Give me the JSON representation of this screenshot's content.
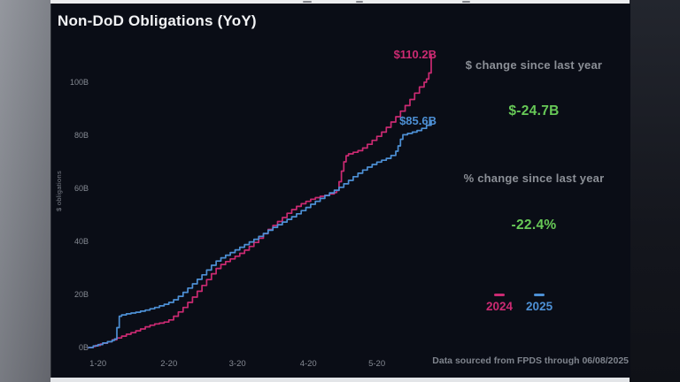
{
  "page": {
    "title": "Non-DoD Obligations (YoY)"
  },
  "chart_data": {
    "type": "line",
    "title": "Non-DoD Obligations (YoY)",
    "xlabel": "",
    "ylabel": "$ obligations",
    "grid": false,
    "legend_position": "bottom-right",
    "ylim": [
      0,
      116
    ],
    "x_range_days": [
      0,
      145
    ],
    "y_ticks": [
      {
        "label": "0B",
        "value": 0
      },
      {
        "label": "20B",
        "value": 20
      },
      {
        "label": "40B",
        "value": 40
      },
      {
        "label": "60B",
        "value": 60
      },
      {
        "label": "80B",
        "value": 80
      },
      {
        "label": "100B",
        "value": 100
      }
    ],
    "x_ticks": [
      {
        "label": "1-20",
        "day": 4
      },
      {
        "label": "2-20",
        "day": 34
      },
      {
        "label": "3-20",
        "day": 63
      },
      {
        "label": "4-20",
        "day": 93
      },
      {
        "label": "5-20",
        "day": 122
      }
    ],
    "series": [
      {
        "name": "2024",
        "color": "#cb2a72",
        "end_label": "$110.2B",
        "final_value_billion": 110.2,
        "points": [
          [
            0,
            0
          ],
          [
            2,
            0.4
          ],
          [
            3,
            0.8
          ],
          [
            5,
            1.3
          ],
          [
            6,
            1.6
          ],
          [
            8,
            2.2
          ],
          [
            10,
            2.9
          ],
          [
            12,
            3.6
          ],
          [
            14,
            4.3
          ],
          [
            16,
            5.0
          ],
          [
            18,
            5.6
          ],
          [
            20,
            6.3
          ],
          [
            22,
            7.0
          ],
          [
            24,
            7.8
          ],
          [
            26,
            8.4
          ],
          [
            28,
            8.9
          ],
          [
            30,
            9.2
          ],
          [
            32,
            9.6
          ],
          [
            34,
            10.4
          ],
          [
            36,
            11.8
          ],
          [
            38,
            13.4
          ],
          [
            40,
            15.1
          ],
          [
            42,
            17.0
          ],
          [
            44,
            19.0
          ],
          [
            46,
            21.2
          ],
          [
            48,
            23.4
          ],
          [
            50,
            25.6
          ],
          [
            52,
            27.8
          ],
          [
            54,
            29.8
          ],
          [
            56,
            31.3
          ],
          [
            58,
            32.4
          ],
          [
            60,
            33.4
          ],
          [
            62,
            34.4
          ],
          [
            64,
            35.5
          ],
          [
            66,
            36.7
          ],
          [
            68,
            38.1
          ],
          [
            70,
            39.6
          ],
          [
            72,
            41.2
          ],
          [
            74,
            42.9
          ],
          [
            76,
            44.5
          ],
          [
            78,
            46.0
          ],
          [
            80,
            47.5
          ],
          [
            82,
            49.0
          ],
          [
            84,
            50.6
          ],
          [
            86,
            52.0
          ],
          [
            88,
            53.2
          ],
          [
            90,
            54.2
          ],
          [
            92,
            55.1
          ],
          [
            94,
            55.9
          ],
          [
            96,
            56.5
          ],
          [
            98,
            57.0
          ],
          [
            100,
            57.4
          ],
          [
            102,
            57.9
          ],
          [
            104,
            58.4
          ],
          [
            105,
            59.2
          ],
          [
            106,
            62.5
          ],
          [
            107,
            66.5
          ],
          [
            108,
            70.0
          ],
          [
            109,
            72.3
          ],
          [
            110,
            73.0
          ],
          [
            112,
            73.6
          ],
          [
            114,
            74.2
          ],
          [
            116,
            75.2
          ],
          [
            118,
            76.6
          ],
          [
            120,
            78.1
          ],
          [
            122,
            79.6
          ],
          [
            124,
            81.2
          ],
          [
            126,
            83.0
          ],
          [
            128,
            85.0
          ],
          [
            130,
            87.0
          ],
          [
            132,
            89.1
          ],
          [
            134,
            91.2
          ],
          [
            136,
            93.5
          ],
          [
            138,
            95.9
          ],
          [
            140,
            98.2
          ],
          [
            142,
            100.0
          ],
          [
            143,
            101.2
          ],
          [
            144,
            103.5
          ],
          [
            145,
            110.2
          ]
        ]
      },
      {
        "name": "2025",
        "color": "#4d90d5",
        "end_label": "$85.6B",
        "final_value_billion": 85.6,
        "points": [
          [
            0,
            0
          ],
          [
            2,
            0.6
          ],
          [
            4,
            1.1
          ],
          [
            6,
            1.7
          ],
          [
            8,
            2.2
          ],
          [
            10,
            2.7
          ],
          [
            11,
            3.2
          ],
          [
            12,
            7.5
          ],
          [
            13,
            11.8
          ],
          [
            14,
            12.3
          ],
          [
            16,
            12.7
          ],
          [
            18,
            13.0
          ],
          [
            20,
            13.3
          ],
          [
            22,
            13.7
          ],
          [
            24,
            14.1
          ],
          [
            26,
            14.6
          ],
          [
            28,
            15.1
          ],
          [
            30,
            15.7
          ],
          [
            32,
            16.3
          ],
          [
            34,
            17.0
          ],
          [
            36,
            18.0
          ],
          [
            38,
            19.3
          ],
          [
            40,
            20.8
          ],
          [
            42,
            22.4
          ],
          [
            44,
            24.0
          ],
          [
            46,
            25.7
          ],
          [
            48,
            27.4
          ],
          [
            50,
            29.2
          ],
          [
            52,
            31.0
          ],
          [
            54,
            32.6
          ],
          [
            56,
            33.8
          ],
          [
            58,
            34.8
          ],
          [
            60,
            35.8
          ],
          [
            62,
            36.8
          ],
          [
            64,
            37.8
          ],
          [
            66,
            38.8
          ],
          [
            68,
            39.8
          ],
          [
            70,
            40.8
          ],
          [
            72,
            41.9
          ],
          [
            74,
            43.0
          ],
          [
            76,
            44.2
          ],
          [
            78,
            45.3
          ],
          [
            80,
            46.3
          ],
          [
            82,
            47.3
          ],
          [
            84,
            48.3
          ],
          [
            86,
            49.3
          ],
          [
            88,
            50.4
          ],
          [
            90,
            51.6
          ],
          [
            92,
            52.8
          ],
          [
            94,
            54.0
          ],
          [
            96,
            55.1
          ],
          [
            98,
            56.2
          ],
          [
            100,
            57.3
          ],
          [
            102,
            58.3
          ],
          [
            104,
            59.3
          ],
          [
            106,
            60.4
          ],
          [
            108,
            61.7
          ],
          [
            110,
            63.0
          ],
          [
            112,
            64.4
          ],
          [
            114,
            65.7
          ],
          [
            116,
            66.9
          ],
          [
            118,
            68.0
          ],
          [
            120,
            69.0
          ],
          [
            122,
            69.9
          ],
          [
            124,
            70.6
          ],
          [
            126,
            71.3
          ],
          [
            128,
            72.4
          ],
          [
            130,
            74.0
          ],
          [
            131,
            76.0
          ],
          [
            132,
            78.5
          ],
          [
            133,
            80.2
          ],
          [
            135,
            80.7
          ],
          [
            137,
            81.2
          ],
          [
            139,
            81.8
          ],
          [
            141,
            82.6
          ],
          [
            143,
            83.8
          ],
          [
            145,
            85.6
          ]
        ]
      }
    ]
  },
  "stats": {
    "label_color": "#8b8f96",
    "value_color": "#67c957",
    "dollar_change": {
      "label": "$ change since last year",
      "value": "$-24.7B"
    },
    "percent_change": {
      "label": "% change since last year",
      "value": "-22.4%"
    }
  },
  "legend": {
    "items": [
      {
        "label": "2024",
        "color": "#cb2a72"
      },
      {
        "label": "2025",
        "color": "#4d90d5"
      }
    ]
  },
  "source_note": "Data sourced from FPDS through 06/08/2025",
  "colors": {
    "background": "#0a0d16",
    "title_text": "#f1f2f4",
    "axis_text": "#858a93"
  }
}
